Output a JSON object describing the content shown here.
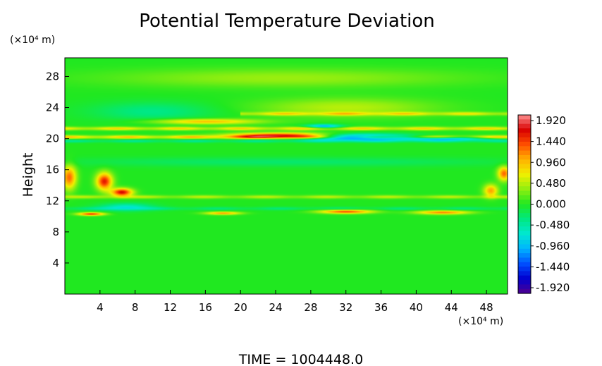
{
  "chart_data": {
    "type": "heatmap",
    "title": "Potential Temperature Deviation",
    "ylabel": "Height",
    "x_unit": "(×10⁴ m)",
    "y_unit": "(×10⁴ m)",
    "x_ticks": [
      4,
      8,
      12,
      16,
      20,
      24,
      28,
      32,
      36,
      40,
      44,
      48
    ],
    "y_ticks": [
      4,
      8,
      12,
      16,
      20,
      24,
      28
    ],
    "xlim": [
      0,
      50.4
    ],
    "ylim": [
      0,
      30.4
    ],
    "colorbar": {
      "labels": [
        "1.920",
        "1.440",
        "0.960",
        "0.480",
        "0.000",
        "-0.480",
        "-0.960",
        "-1.440",
        "-1.920"
      ],
      "range": [
        -1.92,
        1.92
      ],
      "colors": [
        "#500090",
        "#0000d0",
        "#0050ff",
        "#00b4ff",
        "#00e8d0",
        "#00e880",
        "#20e820",
        "#90ee10",
        "#f0f000",
        "#ffb000",
        "#ff5000",
        "#d80000",
        "#ff9090"
      ]
    },
    "background_value": 0.0,
    "features": [
      {
        "kind": "band",
        "x0": 0,
        "x1": 50.4,
        "y": 20.2,
        "value": 0.9
      },
      {
        "kind": "band",
        "x0": 0,
        "x1": 50.4,
        "y": 21.3,
        "value": 0.8
      },
      {
        "kind": "band",
        "x0": 0,
        "x1": 50.4,
        "y": 19.7,
        "value": -0.4
      },
      {
        "kind": "band",
        "x0": 20,
        "x1": 50.4,
        "y": 23.2,
        "value": 0.7
      },
      {
        "kind": "band",
        "x0": 0,
        "x1": 50.4,
        "y": 12.5,
        "value": 0.5
      },
      {
        "kind": "band",
        "x0": 0,
        "x1": 50.4,
        "y": 11.0,
        "value": -0.3
      },
      {
        "kind": "blob",
        "x": 25.0,
        "y": 20.4,
        "rx": 6,
        "ry": 0.35,
        "value": 1.6
      },
      {
        "kind": "blob",
        "x": 33.0,
        "y": 20.2,
        "rx": 6,
        "ry": 0.4,
        "value": -1.6
      },
      {
        "kind": "blob",
        "x": 29.5,
        "y": 21.6,
        "rx": 2,
        "ry": 0.25,
        "value": -1.0
      },
      {
        "kind": "blob",
        "x": 43.5,
        "y": 20.0,
        "rx": 5,
        "ry": 0.25,
        "value": -0.9
      },
      {
        "kind": "blob",
        "x": 10.0,
        "y": 23.5,
        "rx": 7,
        "ry": 1.2,
        "value": -0.35
      },
      {
        "kind": "blob",
        "x": 32.0,
        "y": 24.0,
        "rx": 10,
        "ry": 1.2,
        "value": 0.45
      },
      {
        "kind": "blob",
        "x": 4.5,
        "y": 14.5,
        "rx": 0.9,
        "ry": 1.1,
        "value": 1.5
      },
      {
        "kind": "blob",
        "x": 6.5,
        "y": 13.1,
        "rx": 1.2,
        "ry": 0.5,
        "value": 1.6
      },
      {
        "kind": "blob",
        "x": 0.5,
        "y": 15.0,
        "rx": 0.8,
        "ry": 1.5,
        "value": 1.2
      },
      {
        "kind": "blob",
        "x": 50.0,
        "y": 15.5,
        "rx": 0.7,
        "ry": 0.9,
        "value": 1.2
      },
      {
        "kind": "blob",
        "x": 48.5,
        "y": 13.3,
        "rx": 0.8,
        "ry": 0.8,
        "value": 1.0
      },
      {
        "kind": "blob",
        "x": 3.0,
        "y": 10.3,
        "rx": 1.5,
        "ry": 0.2,
        "value": 1.4
      },
      {
        "kind": "blob",
        "x": 32.0,
        "y": 10.6,
        "rx": 3,
        "ry": 0.25,
        "value": 1.3
      },
      {
        "kind": "blob",
        "x": 18.0,
        "y": 10.4,
        "rx": 2,
        "ry": 0.2,
        "value": 1.0
      },
      {
        "kind": "blob",
        "x": 43.0,
        "y": 10.5,
        "rx": 3,
        "ry": 0.25,
        "value": 1.1
      },
      {
        "kind": "blob",
        "x": 7.0,
        "y": 11.2,
        "rx": 3,
        "ry": 0.5,
        "value": -0.6
      },
      {
        "kind": "blob",
        "x": 16.0,
        "y": 22.2,
        "rx": 6,
        "ry": 0.35,
        "value": 0.9
      },
      {
        "kind": "blob",
        "x": 25.0,
        "y": 27.8,
        "rx": 20,
        "ry": 1.2,
        "value": 0.35
      },
      {
        "kind": "blob",
        "x": 25.0,
        "y": 17.0,
        "rx": 25,
        "ry": 0.6,
        "value": -0.25
      }
    ]
  },
  "footer": {
    "time_text": "TIME  =  1004448.0"
  }
}
